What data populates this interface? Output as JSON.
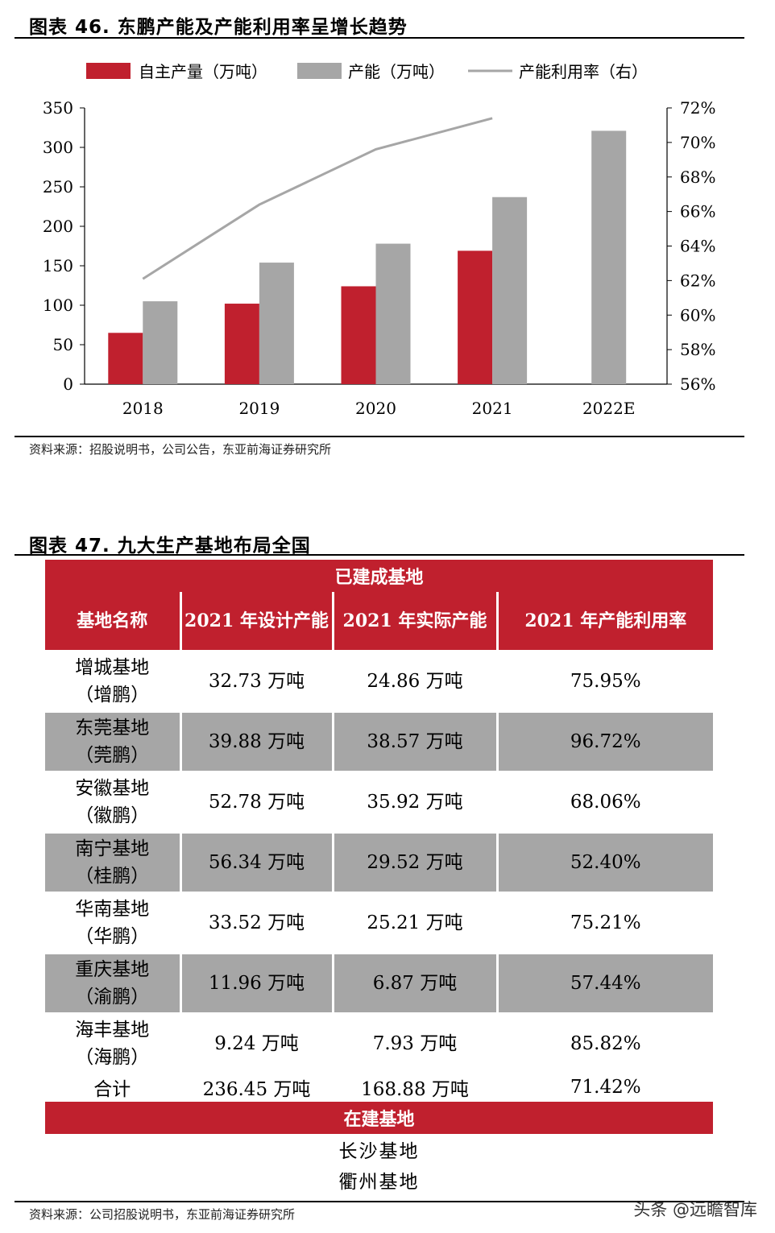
{
  "figure1": {
    "title": "图表 46. 东鹏产能及产能利用率呈增长趋势",
    "source": "资料来源：招股说明书，公司公告，东亚前海证券研究所"
  },
  "chart_data": {
    "type": "bar",
    "title": "东鹏产能及产能利用率呈增长趋势",
    "categories": [
      "2018",
      "2019",
      "2020",
      "2021",
      "2022E"
    ],
    "series": [
      {
        "name": "自主产量（万吨）",
        "type": "bar",
        "axis": "left",
        "color": "#c0202e",
        "values": [
          65,
          102,
          124,
          169,
          null
        ]
      },
      {
        "name": "产能（万吨）",
        "type": "bar",
        "axis": "left",
        "color": "#a6a6a6",
        "values": [
          105,
          154,
          178,
          237,
          321
        ]
      },
      {
        "name": "产能利用率（右）",
        "type": "line",
        "axis": "right",
        "color": "#a6a6a6",
        "values": [
          62.1,
          66.4,
          69.6,
          71.4,
          null
        ]
      }
    ],
    "left_axis": {
      "ylim": [
        0,
        350
      ],
      "ticks": [
        "0",
        "50",
        "100",
        "150",
        "200",
        "250",
        "300",
        "350"
      ]
    },
    "right_axis": {
      "ylim": [
        56,
        72
      ],
      "ticks": [
        "56%",
        "58%",
        "60%",
        "62%",
        "64%",
        "66%",
        "68%",
        "70%",
        "72%"
      ]
    },
    "legend_position": "top"
  },
  "figure2": {
    "title": "图表 47. 九大生产基地布局全国",
    "built_header": "已建成基地",
    "columns": [
      "基地名称",
      "2021 年设计产能",
      "2021 年实际产能",
      "2021 年产能利用率"
    ],
    "rows": [
      {
        "name": "增城基地",
        "sub": "（增鹏）",
        "design": "32.73 万吨",
        "actual": "24.86 万吨",
        "rate": "75.95%"
      },
      {
        "name": "东莞基地",
        "sub": "（莞鹏）",
        "design": "39.88 万吨",
        "actual": "38.57 万吨",
        "rate": "96.72%"
      },
      {
        "name": "安徽基地",
        "sub": "（徽鹏）",
        "design": "52.78 万吨",
        "actual": "35.92 万吨",
        "rate": "68.06%"
      },
      {
        "name": "南宁基地",
        "sub": "（桂鹏）",
        "design": "56.34 万吨",
        "actual": "29.52 万吨",
        "rate": "52.40%"
      },
      {
        "name": "华南基地",
        "sub": "（华鹏）",
        "design": "33.52 万吨",
        "actual": "25.21 万吨",
        "rate": "75.21%"
      },
      {
        "name": "重庆基地",
        "sub": "（渝鹏）",
        "design": "11.96 万吨",
        "actual": "6.87 万吨",
        "rate": "57.44%"
      },
      {
        "name": "海丰基地",
        "sub": "（海鹏）",
        "design": "9.24 万吨",
        "actual": "7.93 万吨",
        "rate": "85.82%"
      }
    ],
    "total": {
      "name": "合计",
      "design": "236.45 万吨",
      "actual": "168.88 万吨",
      "rate": "71.42%"
    },
    "construction_header": "在建基地",
    "construction": [
      "长沙基地",
      "衢州基地"
    ],
    "source": "资料来源：公司招股说明书，东亚前海证券研究所"
  },
  "watermark": "头条 @远瞻智库"
}
